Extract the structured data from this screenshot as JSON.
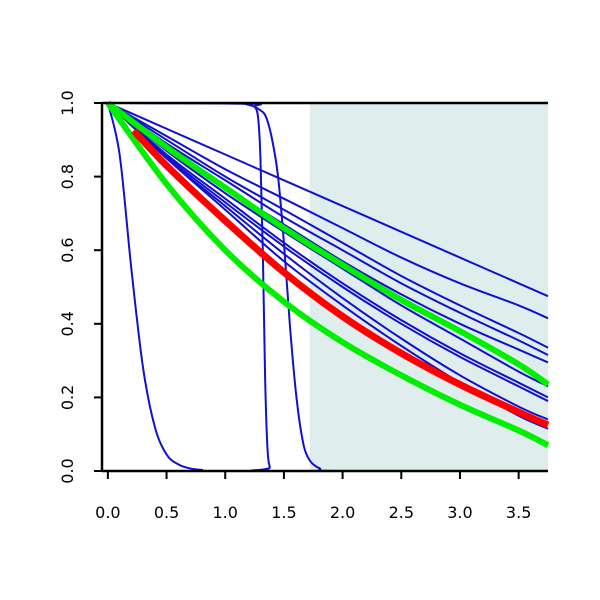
{
  "chart_data": {
    "type": "line",
    "title": "",
    "xlabel": "",
    "ylabel": "",
    "xlim": [
      -0.05,
      3.75
    ],
    "ylim": [
      0.0,
      1.0
    ],
    "xticks": [
      "0.0",
      "0.5",
      "1.0",
      "1.5",
      "2.0",
      "2.5",
      "3.0",
      "3.5"
    ],
    "yticks": [
      "0.0",
      "0.2",
      "0.4",
      "0.6",
      "0.8",
      "1.0"
    ],
    "grid": false,
    "legend": "none",
    "shaded_region": {
      "x_from": 1.72,
      "x_to": 3.75,
      "color": "#dfeded"
    },
    "colors": {
      "blue": "#1010d0",
      "red": "#ff0000",
      "green": "#00ee00"
    },
    "series": [
      {
        "color": "#1010d0",
        "width": 2,
        "x": [
          0,
          0.1,
          0.2,
          0.3,
          0.4,
          0.5,
          0.6,
          0.7,
          0.8,
          1.0,
          3.75
        ],
        "y": [
          1.0,
          0.86,
          0.55,
          0.28,
          0.12,
          0.045,
          0.018,
          0.007,
          0.003,
          0.0,
          0.0
        ]
      },
      {
        "color": "#1010d0",
        "width": 2,
        "x": [
          0,
          1.2,
          1.25,
          1.28,
          1.3,
          1.32,
          1.34,
          1.36,
          1.38,
          1.4,
          3.75
        ],
        "y": [
          1.0,
          0.998,
          0.99,
          0.96,
          0.85,
          0.6,
          0.25,
          0.06,
          0.01,
          0.0,
          0.0
        ]
      },
      {
        "color": "#1010d0",
        "width": 2,
        "x": [
          0,
          1.0,
          1.2,
          1.3,
          1.35,
          1.4,
          1.45,
          1.5,
          1.55,
          1.6,
          1.65,
          1.7,
          1.8,
          2.0,
          3.75
        ],
        "y": [
          1.0,
          1.0,
          0.995,
          0.98,
          0.96,
          0.9,
          0.8,
          0.62,
          0.4,
          0.22,
          0.1,
          0.04,
          0.008,
          0.0,
          0.0
        ]
      },
      {
        "color": "#1010d0",
        "width": 2,
        "x": [
          0,
          0.5,
          1.0,
          1.5,
          2.0,
          2.5,
          3.0,
          3.5,
          3.75
        ],
        "y": [
          1.0,
          0.93,
          0.86,
          0.79,
          0.72,
          0.65,
          0.58,
          0.51,
          0.475
        ]
      },
      {
        "color": "#1010d0",
        "width": 2,
        "x": [
          0,
          0.5,
          1.0,
          1.5,
          2.0,
          2.5,
          3.0,
          3.5,
          3.75
        ],
        "y": [
          1.0,
          0.91,
          0.82,
          0.74,
          0.66,
          0.58,
          0.51,
          0.45,
          0.415
        ]
      },
      {
        "color": "#1010d0",
        "width": 2,
        "x": [
          0,
          0.5,
          1.0,
          1.5,
          2.0,
          2.5,
          3.0,
          3.5,
          3.75
        ],
        "y": [
          1.0,
          0.9,
          0.8,
          0.71,
          0.62,
          0.53,
          0.45,
          0.375,
          0.335
        ]
      },
      {
        "color": "#1010d0",
        "width": 2,
        "x": [
          0,
          0.5,
          1.0,
          1.5,
          2.0,
          2.5,
          3.0,
          3.5,
          3.75
        ],
        "y": [
          1.0,
          0.89,
          0.79,
          0.69,
          0.6,
          0.51,
          0.43,
          0.355,
          0.315
        ]
      },
      {
        "color": "#1010d0",
        "width": 2,
        "x": [
          0,
          0.5,
          1.0,
          1.5,
          2.0,
          2.5,
          3.0,
          3.5,
          3.75
        ],
        "y": [
          1.0,
          0.88,
          0.77,
          0.67,
          0.57,
          0.48,
          0.4,
          0.33,
          0.295
        ]
      },
      {
        "color": "#1010d0",
        "width": 2,
        "x": [
          0,
          0.5,
          1.0,
          1.5,
          2.0,
          2.5,
          3.0,
          3.5,
          3.75
        ],
        "y": [
          1.0,
          0.87,
          0.755,
          0.65,
          0.55,
          0.45,
          0.36,
          0.27,
          0.23
        ]
      },
      {
        "color": "#1010d0",
        "width": 2,
        "x": [
          0,
          0.5,
          1.0,
          1.5,
          2.0,
          2.5,
          3.0,
          3.5,
          3.75
        ],
        "y": [
          1.0,
          0.86,
          0.74,
          0.62,
          0.51,
          0.41,
          0.32,
          0.24,
          0.2
        ]
      },
      {
        "color": "#1010d0",
        "width": 2,
        "x": [
          0,
          0.5,
          1.0,
          1.5,
          2.0,
          2.5,
          3.0,
          3.5,
          3.75
        ],
        "y": [
          1.0,
          0.855,
          0.73,
          0.61,
          0.5,
          0.4,
          0.31,
          0.23,
          0.19
        ]
      },
      {
        "color": "#1010d0",
        "width": 2,
        "x": [
          0,
          0.5,
          1.0,
          1.5,
          2.0,
          2.5,
          3.0,
          3.5,
          3.75
        ],
        "y": [
          1.0,
          0.85,
          0.72,
          0.59,
          0.47,
          0.36,
          0.26,
          0.175,
          0.14
        ]
      },
      {
        "color": "#1010d0",
        "width": 2,
        "x": [
          0,
          0.5,
          1.0,
          1.5,
          2.0,
          2.5,
          3.0,
          3.5,
          3.75
        ],
        "y": [
          1.0,
          0.85,
          0.71,
          0.57,
          0.45,
          0.34,
          0.24,
          0.15,
          0.115
        ]
      },
      {
        "color": "#00ee00",
        "width": 6,
        "x": [
          0,
          0.5,
          1.0,
          1.5,
          2.0,
          2.5,
          3.0,
          3.5,
          3.75
        ],
        "y": [
          1.0,
          0.88,
          0.77,
          0.66,
          0.56,
          0.465,
          0.38,
          0.29,
          0.235
        ]
      },
      {
        "color": "#00ee00",
        "width": 6,
        "x": [
          0,
          0.5,
          1.0,
          1.5,
          2.0,
          2.5,
          3.0,
          3.5,
          3.75
        ],
        "y": [
          1.0,
          0.78,
          0.6,
          0.46,
          0.35,
          0.26,
          0.18,
          0.11,
          0.07
        ]
      },
      {
        "color": "#ff0000",
        "width": 7,
        "x": [
          0.22,
          0.5,
          1.0,
          1.5,
          2.0,
          2.5,
          3.0,
          3.5,
          3.75
        ],
        "y": [
          0.925,
          0.83,
          0.68,
          0.54,
          0.42,
          0.32,
          0.235,
          0.16,
          0.125
        ]
      }
    ]
  }
}
